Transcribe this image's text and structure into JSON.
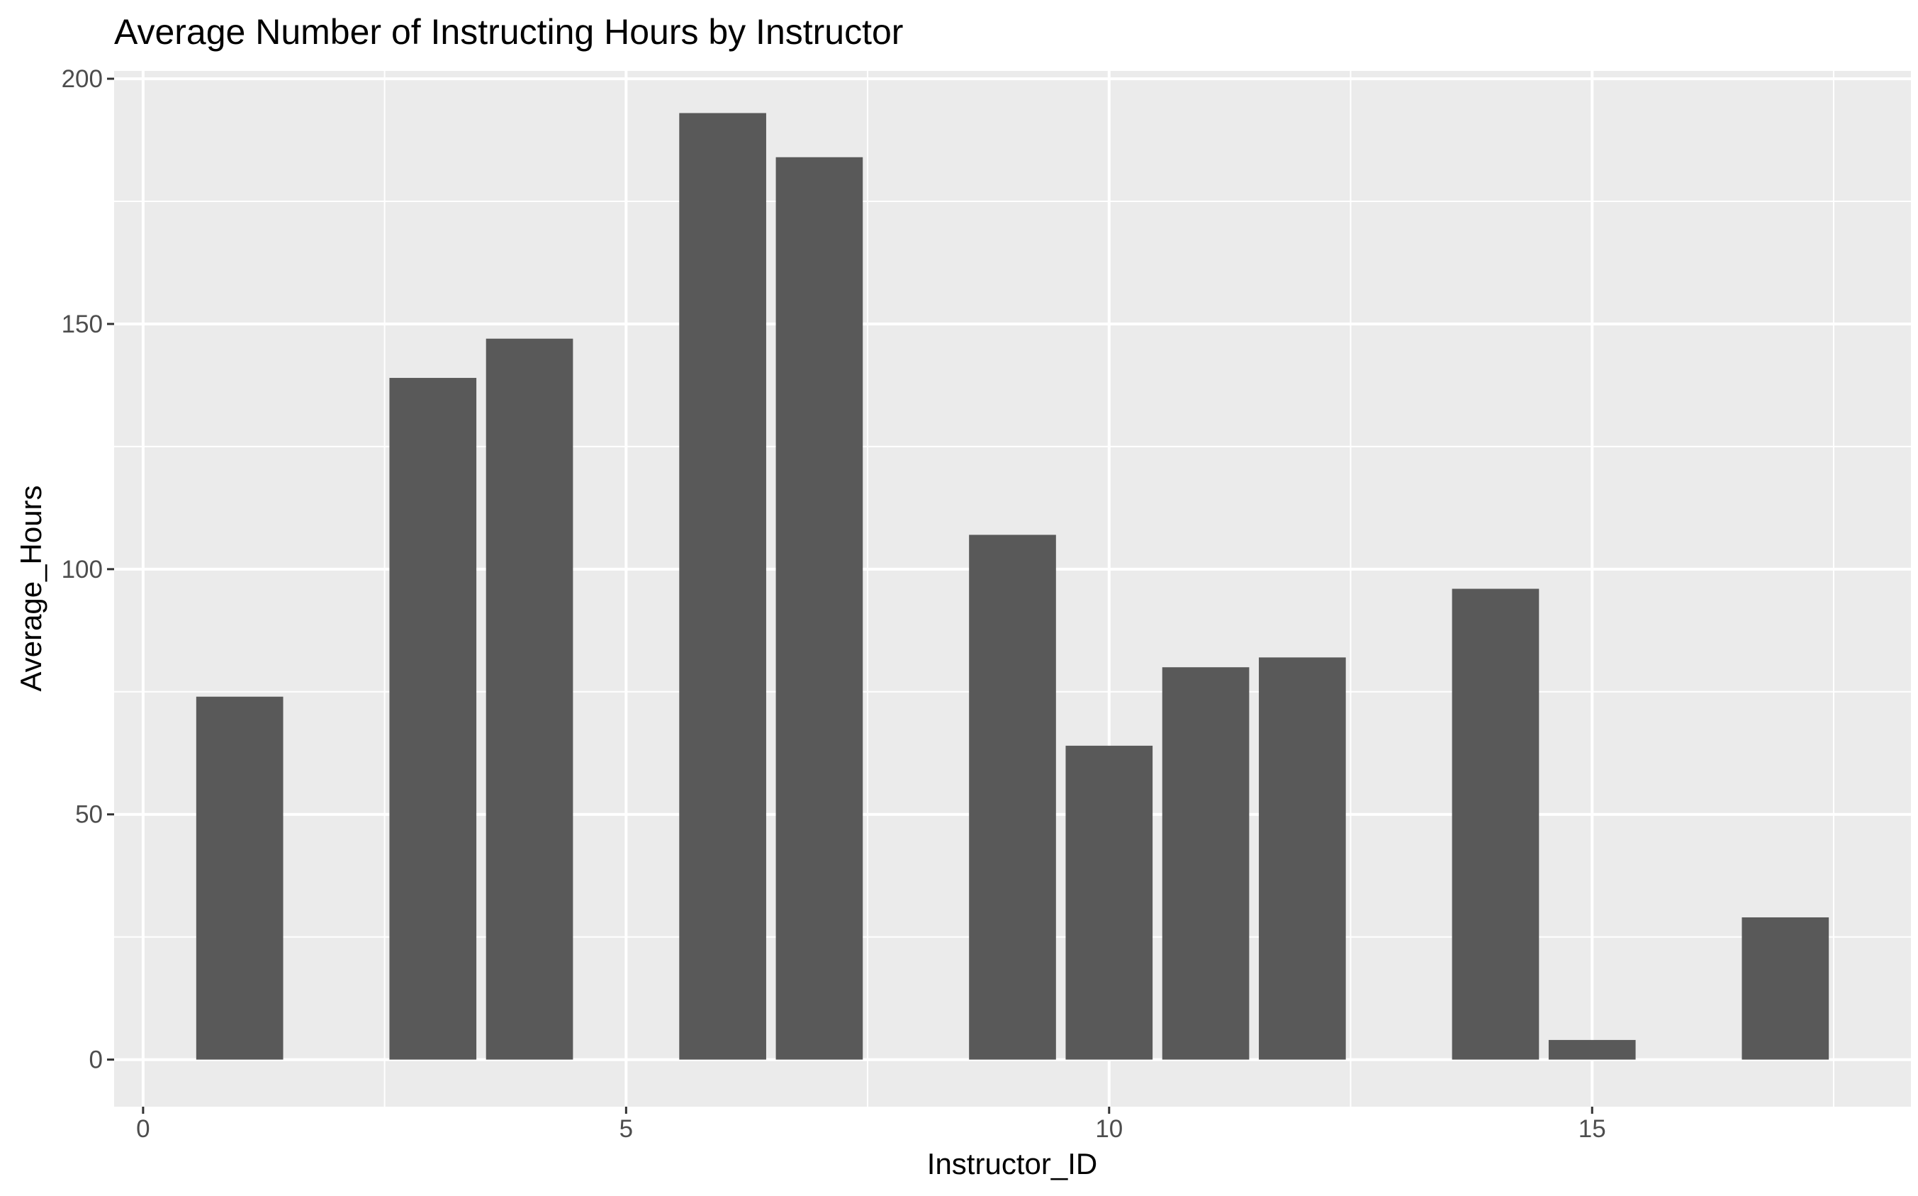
{
  "chart_data": {
    "type": "bar",
    "title": "Average Number of Instructing Hours by Instructor",
    "xlabel": "Instructor_ID",
    "ylabel": "Average_Hours",
    "x": [
      1,
      3,
      4,
      6,
      7,
      9,
      10,
      11,
      12,
      14,
      15,
      17
    ],
    "values": [
      74,
      139,
      147,
      193,
      184,
      107,
      64,
      80,
      82,
      96,
      4,
      29
    ],
    "xlim": [
      -0.3,
      18.3
    ],
    "ylim": [
      -9.6,
      201.6
    ],
    "x_ticks": [
      0,
      5,
      10,
      15
    ],
    "x_tick_labels": [
      "0",
      "5",
      "10",
      "15"
    ],
    "y_ticks": [
      0,
      50,
      100,
      150,
      200
    ],
    "y_tick_labels": [
      "0",
      "50",
      "100",
      "150",
      "200"
    ],
    "x_minor_ticks": [
      2.5,
      7.5,
      12.5,
      17.5
    ],
    "y_minor_ticks": [
      25,
      75,
      125,
      175
    ],
    "bar_width": 0.9,
    "grid": true,
    "legend": "none",
    "colors": {
      "panel": "#ebebeb",
      "grid": "#ffffff",
      "bar": "#595959",
      "tick": "#333333",
      "tick_label": "#4d4d4d",
      "text": "#000000"
    }
  }
}
